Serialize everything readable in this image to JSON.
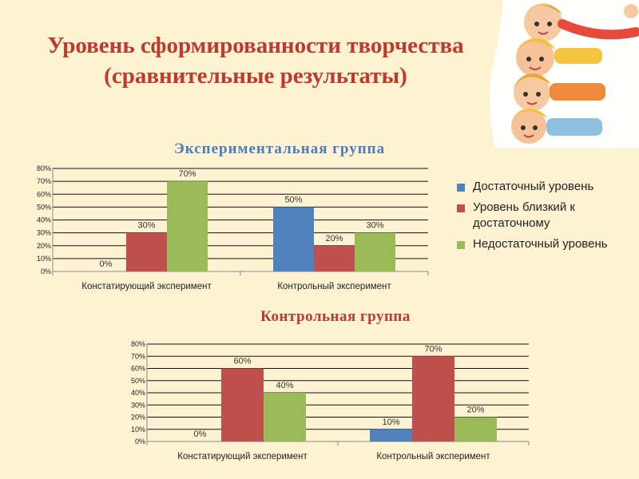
{
  "slide": {
    "title_line1": "Уровень сформированности творчества",
    "title_line2": "(сравнительные результаты)"
  },
  "colors": {
    "background": "#fdf3d2",
    "title": "#c0392b",
    "series_blue": "#4f81bd",
    "series_red": "#c0504d",
    "series_green": "#9bbb59"
  },
  "legend": {
    "items": [
      {
        "label": "Достаточный уровень",
        "color": "#4f81bd"
      },
      {
        "label": "Уровень близкий к достаточному",
        "color": "#c0504d"
      },
      {
        "label": "Недостаточный уровень",
        "color": "#9bbb59"
      }
    ]
  },
  "chart_data": [
    {
      "type": "bar",
      "title": "Экспериментальная группа",
      "categories": [
        "Констатирующий эксперимент",
        "Контрольный эксперимент"
      ],
      "series": [
        {
          "name": "Достаточный уровень",
          "values": [
            0,
            50
          ],
          "labels": [
            "0%",
            "50%"
          ]
        },
        {
          "name": "Уровень близкий к достаточному",
          "values": [
            30,
            20
          ],
          "labels": [
            "30%",
            "20%"
          ]
        },
        {
          "name": "Недостаточный уровень",
          "values": [
            70,
            30
          ],
          "labels": [
            "70%",
            "30%"
          ]
        }
      ],
      "ylim": [
        0,
        80
      ],
      "yticks": [
        "0%",
        "10%",
        "20%",
        "30%",
        "40%",
        "50%",
        "60%",
        "70%",
        "80%"
      ],
      "legend_position": "right"
    },
    {
      "type": "bar",
      "title": "Контрольная группа",
      "categories": [
        "Констатирующий эксперимент",
        "Контрольный эксперимент"
      ],
      "series": [
        {
          "name": "Достаточный уровень",
          "values": [
            0,
            10
          ],
          "labels": [
            "0%",
            "10%"
          ]
        },
        {
          "name": "Уровень близкий к достаточному",
          "values": [
            60,
            70
          ],
          "labels": [
            "60%",
            "70%"
          ]
        },
        {
          "name": "Недостаточный уровень",
          "values": [
            40,
            20
          ],
          "labels": [
            "40%",
            "20%"
          ]
        }
      ],
      "ylim": [
        0,
        80
      ],
      "yticks": [
        "0%",
        "10%",
        "20%",
        "30%",
        "40%",
        "50%",
        "60%",
        "70%",
        "80%"
      ]
    }
  ]
}
